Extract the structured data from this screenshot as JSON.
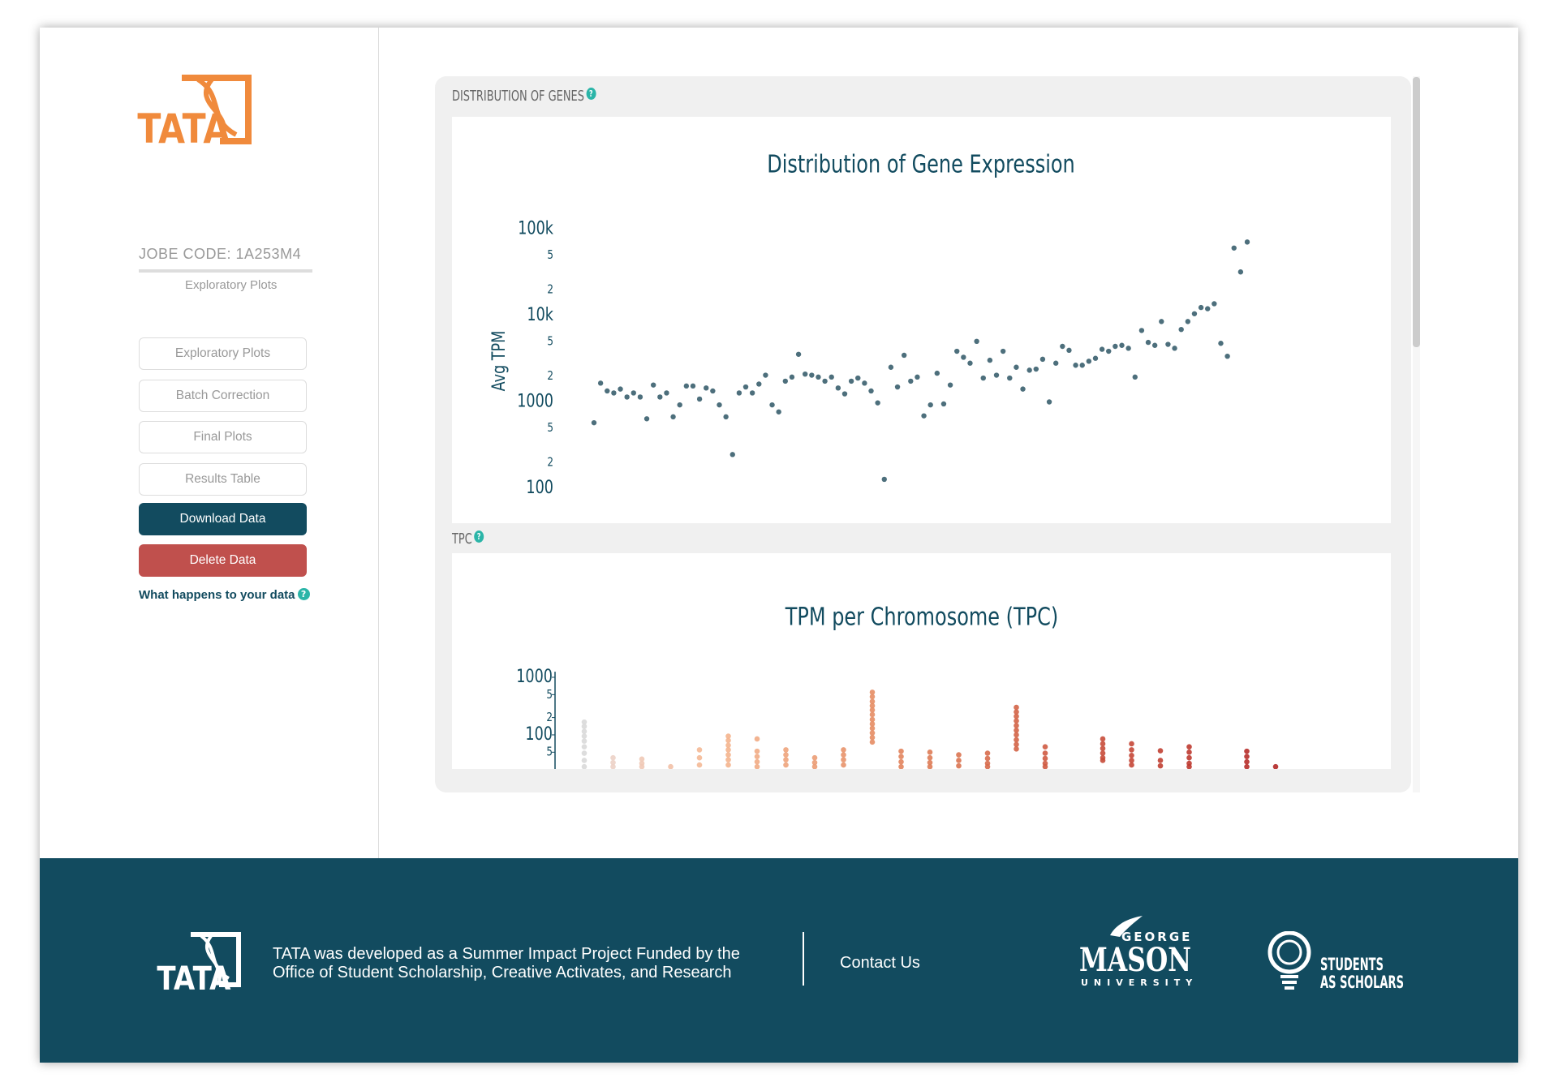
{
  "sidebar": {
    "logo_text": "TATA",
    "job_code": "JOBE CODE: 1A253M4",
    "current_page": "Exploratory Plots",
    "nav": [
      "Exploratory Plots",
      "Batch Correction",
      "Final Plots",
      "Results Table"
    ],
    "download_button": "Download Data",
    "delete_button": "Delete Data",
    "data_info_link": "What happens to your data",
    "help_icon": "?"
  },
  "panels": [
    {
      "heading": "DISTRIBUTION OF GENES",
      "help_icon": "?"
    },
    {
      "heading": "TPC",
      "help_icon": "?"
    }
  ],
  "chart_data": [
    {
      "type": "scatter",
      "title": "Distribution of Gene Expression",
      "ylabel": "Avg TPM",
      "color": "#4d6f7c",
      "ylog": true,
      "ylim": [
        60,
        150000
      ],
      "yticks": [
        100,
        {
          "value": 200,
          "label": "2"
        },
        {
          "value": 500,
          "label": "5"
        },
        1000,
        {
          "value": 2000,
          "label": "2"
        },
        {
          "value": 5000,
          "label": "5"
        },
        {
          "value": 10000,
          "label": "10k"
        },
        {
          "value": 20000,
          "label": "2"
        },
        {
          "value": 50000,
          "label": "5"
        },
        {
          "value": 100000,
          "label": "100k"
        }
      ],
      "values": [
        574,
        1650,
        1340,
        1270,
        1410,
        1140,
        1270,
        1140,
        638,
        1570,
        1140,
        1270,
        672,
        924,
        1530,
        1530,
        1080,
        1450,
        1340,
        924,
        672,
        246,
        1270,
        1490,
        1270,
        1610,
        2040,
        924,
        767,
        1740,
        1940,
        3560,
        2100,
        2040,
        1940,
        1740,
        1940,
        1450,
        1240,
        1740,
        1890,
        1650,
        1340,
        975,
        127,
        2520,
        1490,
        3470,
        1740,
        1940,
        690,
        924,
        2150,
        948,
        1570,
        3860,
        3290,
        2810,
        5030,
        1890,
        3040,
        2040,
        3860,
        1890,
        2520,
        1410,
        2330,
        2400,
        3120,
        1000,
        2810,
        4400,
        3960,
        2660,
        2660,
        2960,
        3200,
        4070,
        3860,
        4400,
        4520,
        4180,
        1940,
        6720,
        4890,
        4520,
        8530,
        4640,
        4180,
        6900,
        8530,
        10500,
        12400,
        12000,
        13700,
        4770,
        3380,
        60500,
        32000,
        71000
      ]
    },
    {
      "type": "strip",
      "title": "TPM per Chromosome (TPC)",
      "ylog": true,
      "ylim": [
        25,
        1250
      ],
      "yticks": [
        1000,
        {
          "value": 500,
          "label": "5"
        },
        {
          "value": 200,
          "label": "2"
        },
        100,
        {
          "value": 50,
          "label": "5"
        }
      ],
      "series": [
        {
          "color": "#d9d9d9",
          "values": [
            167,
            140,
            115,
            95,
            78,
            62,
            48,
            36,
            28
          ]
        },
        {
          "color": "#ecd2c6",
          "values": [
            40,
            33,
            28
          ]
        },
        {
          "color": "#efc9b6",
          "values": [
            38,
            32,
            28
          ]
        },
        {
          "color": "#f2c0a6",
          "values": [
            28
          ]
        },
        {
          "color": "#f4b996",
          "values": [
            55,
            40,
            30
          ]
        },
        {
          "color": "#f4b48d",
          "values": [
            95,
            80,
            66,
            55,
            45,
            37,
            30
          ]
        },
        {
          "color": "#f1ab84",
          "values": [
            85,
            52,
            42,
            34,
            28
          ]
        },
        {
          "color": "#eea47c",
          "values": [
            55,
            45,
            37,
            30
          ]
        },
        {
          "color": "#eb9c74",
          "values": [
            40,
            33,
            28
          ]
        },
        {
          "color": "#e8946c",
          "values": [
            55,
            45,
            37,
            30
          ]
        },
        {
          "color": "#e68d64",
          "values": [
            550,
            460,
            380,
            320,
            270,
            225,
            185,
            155,
            130,
            108,
            90,
            75
          ]
        },
        {
          "color": "#e2845d",
          "values": [
            52,
            42,
            34,
            28
          ]
        },
        {
          "color": "#de7c57",
          "values": [
            50,
            40,
            33,
            28
          ]
        },
        {
          "color": "#da7451",
          "values": [
            45,
            36,
            29
          ]
        },
        {
          "color": "#d76c4c",
          "values": [
            48,
            39,
            32,
            28
          ]
        },
        {
          "color": "#d36447",
          "values": [
            300,
            250,
            210,
            175,
            145,
            120,
            100,
            82,
            68,
            57
          ]
        },
        {
          "color": "#cf5b42",
          "values": [
            62,
            48,
            39,
            32,
            28
          ]
        },
        {
          "color": "#cb553e",
          "values": []
        },
        {
          "color": "#c84d3a",
          "values": [
            85,
            70,
            58,
            48,
            40,
            36
          ]
        },
        {
          "color": "#c54737",
          "values": [
            70,
            55,
            44,
            36,
            30
          ]
        },
        {
          "color": "#c14033",
          "values": [
            53,
            36,
            29
          ]
        },
        {
          "color": "#be3a30",
          "values": [
            62,
            50,
            40,
            32,
            28
          ]
        },
        {
          "color": "#ba342d",
          "values": []
        },
        {
          "color": "#b72e2a",
          "values": [
            52,
            42,
            34,
            28
          ]
        },
        {
          "color": "#b32927",
          "values": [
            28
          ]
        }
      ]
    }
  ],
  "footer": {
    "logo_text": "TATA",
    "description": [
      "TATA was developed as a Summer Impact Project Funded by the",
      "Office of Student Scholarship, Creative Activates, and Research"
    ],
    "contact": "Contact Us",
    "mason_top": "GEORGE",
    "mason_name": "MASON",
    "mason_bottom": "UNIVERSITY",
    "scholars": [
      "STUDENTS",
      "AS SCHOLARS"
    ]
  }
}
